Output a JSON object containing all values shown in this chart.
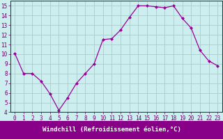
{
  "x": [
    0,
    1,
    2,
    3,
    4,
    5,
    6,
    7,
    8,
    9,
    10,
    11,
    12,
    13,
    14,
    15,
    16,
    17,
    18,
    19,
    20,
    21,
    22,
    23
  ],
  "y": [
    10.1,
    8.0,
    8.0,
    7.2,
    5.9,
    4.2,
    5.5,
    7.0,
    8.0,
    9.0,
    11.5,
    11.6,
    12.5,
    13.8,
    15.0,
    15.0,
    14.9,
    14.8,
    15.0,
    13.7,
    12.7,
    10.4,
    9.3,
    8.8
  ],
  "line_color": "#990099",
  "marker": "D",
  "marker_size": 2,
  "bg_color": "#cceeee",
  "grid_color": "#aacccc",
  "xlabel": "Windchill (Refroidissement éolien,°C)",
  "xlim": [
    -0.5,
    23.5
  ],
  "ylim": [
    4,
    15.5
  ],
  "yticks": [
    4,
    5,
    6,
    7,
    8,
    9,
    10,
    11,
    12,
    13,
    14,
    15
  ],
  "xticks": [
    0,
    1,
    2,
    3,
    4,
    5,
    6,
    7,
    8,
    9,
    10,
    11,
    12,
    13,
    14,
    15,
    16,
    17,
    18,
    19,
    20,
    21,
    22,
    23
  ],
  "xlabel_color": "#ffffff",
  "xlabel_bg": "#880088",
  "tick_fontsize": 5.5,
  "xlabel_fontsize": 6.5
}
